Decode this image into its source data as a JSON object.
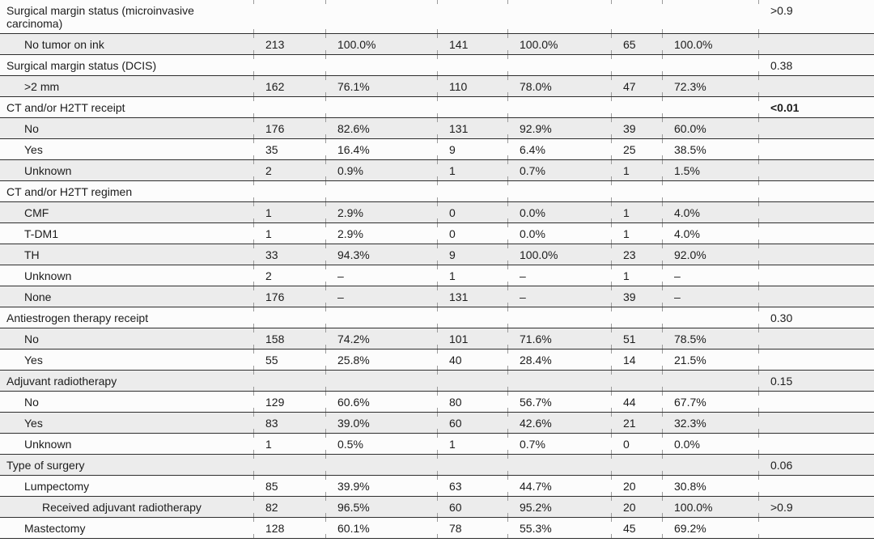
{
  "style": {
    "row_shade_color": "#ececec",
    "rule_color": "#2e2e2e",
    "tick_color": "#9b9b9b",
    "bold_p_value": "<0.01"
  },
  "table": {
    "description": "Clinical characteristics table fragment with counts, percentages and p-values",
    "column_semantics": [
      "characteristic",
      "n_total",
      "pct_total",
      "n_group2",
      "pct_group2",
      "n_group3",
      "pct_group3",
      "p_value"
    ],
    "rows": [
      {
        "label": "Surgical margin status (microinvasive carcinoma)",
        "indent": 0,
        "cells": [
          "",
          "",
          "",
          "",
          "",
          ""
        ],
        "p": ">0.9",
        "p_bold": false
      },
      {
        "label": "No tumor on ink",
        "indent": 1,
        "cells": [
          "213",
          "100.0%",
          "141",
          "100.0%",
          "65",
          "100.0%"
        ],
        "p": "",
        "p_bold": false
      },
      {
        "label": "Surgical margin status (DCIS)",
        "indent": 0,
        "cells": [
          "",
          "",
          "",
          "",
          "",
          ""
        ],
        "p": "0.38",
        "p_bold": false
      },
      {
        "label": ">2 mm",
        "indent": 1,
        "cells": [
          "162",
          "76.1%",
          "110",
          "78.0%",
          "47",
          "72.3%"
        ],
        "p": "",
        "p_bold": false
      },
      {
        "label": "CT and/or H2TT receipt",
        "indent": 0,
        "cells": [
          "",
          "",
          "",
          "",
          "",
          ""
        ],
        "p": "<0.01",
        "p_bold": true
      },
      {
        "label": "No",
        "indent": 1,
        "cells": [
          "176",
          "82.6%",
          "131",
          "92.9%",
          "39",
          "60.0%"
        ],
        "p": "",
        "p_bold": false
      },
      {
        "label": "Yes",
        "indent": 1,
        "cells": [
          "35",
          "16.4%",
          "9",
          "6.4%",
          "25",
          "38.5%"
        ],
        "p": "",
        "p_bold": false
      },
      {
        "label": "Unknown",
        "indent": 1,
        "cells": [
          "2",
          "0.9%",
          "1",
          "0.7%",
          "1",
          "1.5%"
        ],
        "p": "",
        "p_bold": false
      },
      {
        "label": "CT and/or H2TT regimen",
        "indent": 0,
        "cells": [
          "",
          "",
          "",
          "",
          "",
          ""
        ],
        "p": "",
        "p_bold": false
      },
      {
        "label": "CMF",
        "indent": 1,
        "cells": [
          "1",
          "2.9%",
          "0",
          "0.0%",
          "1",
          "4.0%"
        ],
        "p": "",
        "p_bold": false
      },
      {
        "label": "T-DM1",
        "indent": 1,
        "cells": [
          "1",
          "2.9%",
          "0",
          "0.0%",
          "1",
          "4.0%"
        ],
        "p": "",
        "p_bold": false
      },
      {
        "label": "TH",
        "indent": 1,
        "cells": [
          "33",
          "94.3%",
          "9",
          "100.0%",
          "23",
          "92.0%"
        ],
        "p": "",
        "p_bold": false
      },
      {
        "label": "Unknown",
        "indent": 1,
        "cells": [
          "2",
          "–",
          "1",
          "–",
          "1",
          "–"
        ],
        "p": "",
        "p_bold": false
      },
      {
        "label": "None",
        "indent": 1,
        "cells": [
          "176",
          "–",
          "131",
          "–",
          "39",
          "–"
        ],
        "p": "",
        "p_bold": false
      },
      {
        "label": "Antiestrogen therapy receipt",
        "indent": 0,
        "cells": [
          "",
          "",
          "",
          "",
          "",
          ""
        ],
        "p": "0.30",
        "p_bold": false
      },
      {
        "label": "No",
        "indent": 1,
        "cells": [
          "158",
          "74.2%",
          "101",
          "71.6%",
          "51",
          "78.5%"
        ],
        "p": "",
        "p_bold": false
      },
      {
        "label": "Yes",
        "indent": 1,
        "cells": [
          "55",
          "25.8%",
          "40",
          "28.4%",
          "14",
          "21.5%"
        ],
        "p": "",
        "p_bold": false
      },
      {
        "label": "Adjuvant radiotherapy",
        "indent": 0,
        "cells": [
          "",
          "",
          "",
          "",
          "",
          ""
        ],
        "p": "0.15",
        "p_bold": false
      },
      {
        "label": "No",
        "indent": 1,
        "cells": [
          "129",
          "60.6%",
          "80",
          "56.7%",
          "44",
          "67.7%"
        ],
        "p": "",
        "p_bold": false
      },
      {
        "label": "Yes",
        "indent": 1,
        "cells": [
          "83",
          "39.0%",
          "60",
          "42.6%",
          "21",
          "32.3%"
        ],
        "p": "",
        "p_bold": false
      },
      {
        "label": "Unknown",
        "indent": 1,
        "cells": [
          "1",
          "0.5%",
          "1",
          "0.7%",
          "0",
          "0.0%"
        ],
        "p": "",
        "p_bold": false
      },
      {
        "label": "Type of surgery",
        "indent": 0,
        "cells": [
          "",
          "",
          "",
          "",
          "",
          ""
        ],
        "p": "0.06",
        "p_bold": false
      },
      {
        "label": "Lumpectomy",
        "indent": 1,
        "cells": [
          "85",
          "39.9%",
          "63",
          "44.7%",
          "20",
          "30.8%"
        ],
        "p": "",
        "p_bold": false
      },
      {
        "label": "Received adjuvant radiotherapy",
        "indent": 2,
        "cells": [
          "82",
          "96.5%",
          "60",
          "95.2%",
          "20",
          "100.0%"
        ],
        "p": ">0.9",
        "p_bold": false
      },
      {
        "label": "Mastectomy",
        "indent": 1,
        "cells": [
          "128",
          "60.1%",
          "78",
          "55.3%",
          "45",
          "69.2%"
        ],
        "p": "",
        "p_bold": false
      }
    ]
  }
}
